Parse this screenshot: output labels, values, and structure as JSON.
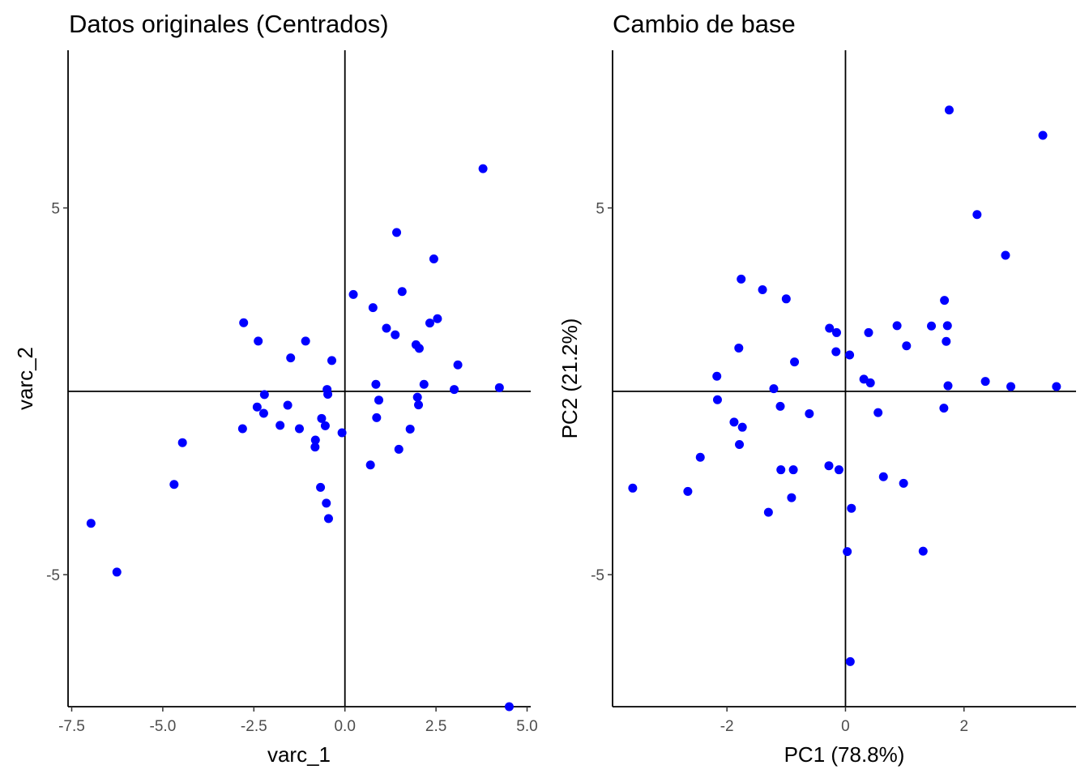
{
  "chart_data": [
    {
      "type": "scatter",
      "title": "Datos originales (Centrados)",
      "xlabel": "varc_1",
      "ylabel": "varc_2",
      "xlim": [
        -7.6,
        5.1
      ],
      "ylim": [
        -8.6,
        9.3
      ],
      "xticks": [
        -7.5,
        -5.0,
        -2.5,
        0.0,
        2.5,
        5.0
      ],
      "xtick_labels": [
        "-7.5",
        "-5.0",
        "-2.5",
        "0.0",
        "2.5",
        "5.0"
      ],
      "yticks": [
        -5,
        5
      ],
      "ytick_labels": [
        "-5",
        "5"
      ],
      "reference_lines": {
        "x": 0,
        "y": 0
      },
      "grid": false,
      "point_color": "#0000FF",
      "x": [
        -6.97,
        -6.26,
        -4.69,
        -4.46,
        -2.81,
        -2.78,
        -2.41,
        -2.38,
        -2.23,
        -2.21,
        -1.78,
        -1.57,
        -1.49,
        -1.25,
        -1.08,
        -0.82,
        -0.81,
        -0.67,
        -0.64,
        -0.54,
        -0.51,
        -0.49,
        -0.47,
        -0.45,
        -0.36,
        -0.08,
        0.23,
        0.7,
        0.77,
        0.85,
        0.87,
        0.93,
        1.14,
        1.38,
        1.42,
        1.48,
        1.57,
        1.79,
        1.95,
        1.99,
        2.02,
        2.04,
        2.17,
        2.33,
        2.44,
        2.54,
        3.0,
        3.1,
        3.79,
        4.24,
        4.51
      ],
      "y": [
        -3.6,
        -4.93,
        -2.54,
        -1.4,
        -1.02,
        1.87,
        -0.43,
        1.37,
        -0.6,
        -0.09,
        -0.93,
        -0.38,
        0.91,
        -1.02,
        1.37,
        -1.52,
        -1.33,
        -2.62,
        -0.74,
        -0.94,
        -3.05,
        0.05,
        -0.08,
        -3.47,
        0.84,
        -1.13,
        2.64,
        -2.01,
        2.28,
        0.19,
        -0.72,
        -0.24,
        1.72,
        1.54,
        4.33,
        -1.58,
        2.72,
        -1.03,
        1.27,
        -0.16,
        -0.37,
        1.17,
        0.19,
        1.86,
        3.61,
        1.98,
        0.05,
        0.72,
        6.07,
        0.1,
        -8.6
      ]
    },
    {
      "type": "scatter",
      "title": "Cambio de base",
      "xlabel": "PC1 (78.8%)",
      "ylabel": "PC2 (21.2%)",
      "xlim": [
        -3.93,
        3.89
      ],
      "ylim": [
        -8.6,
        9.3
      ],
      "xticks": [
        -2,
        0,
        2
      ],
      "xtick_labels": [
        "-2",
        "0",
        "2"
      ],
      "yticks": [
        -5,
        5
      ],
      "ytick_labels": [
        "-5",
        "5"
      ],
      "reference_lines": {
        "x": 0,
        "y": 0
      },
      "grid": false,
      "point_color": "#0000FF",
      "x": [
        -3.59,
        -2.66,
        -2.45,
        -2.17,
        -2.16,
        -1.88,
        -1.8,
        -1.79,
        -1.76,
        -1.74,
        -1.4,
        -1.3,
        -1.21,
        -1.1,
        -1.09,
        -1.0,
        -0.91,
        -0.88,
        -0.86,
        -0.61,
        -0.28,
        -0.27,
        -0.16,
        -0.15,
        -0.11,
        0.03,
        0.07,
        0.08,
        0.1,
        0.31,
        0.39,
        0.42,
        0.55,
        0.64,
        0.87,
        0.98,
        1.03,
        1.31,
        1.45,
        1.66,
        1.67,
        1.7,
        1.72,
        1.73,
        1.75,
        2.22,
        2.36,
        2.7,
        2.79,
        3.33,
        3.56
      ],
      "y": [
        -2.64,
        -2.73,
        -1.8,
        0.41,
        -0.23,
        -0.84,
        1.18,
        -1.45,
        3.06,
        -0.98,
        2.77,
        -3.3,
        0.07,
        -0.41,
        -2.14,
        2.52,
        -2.9,
        -2.14,
        0.8,
        -0.61,
        -2.03,
        1.72,
        1.08,
        1.6,
        -2.14,
        -4.37,
        0.99,
        -7.37,
        -3.19,
        0.33,
        1.6,
        0.23,
        -0.58,
        -2.33,
        1.79,
        -2.51,
        1.24,
        -4.36,
        1.78,
        -0.46,
        2.48,
        1.36,
        1.79,
        0.15,
        7.67,
        4.82,
        0.27,
        3.71,
        0.13,
        6.98,
        0.13
      ]
    }
  ]
}
